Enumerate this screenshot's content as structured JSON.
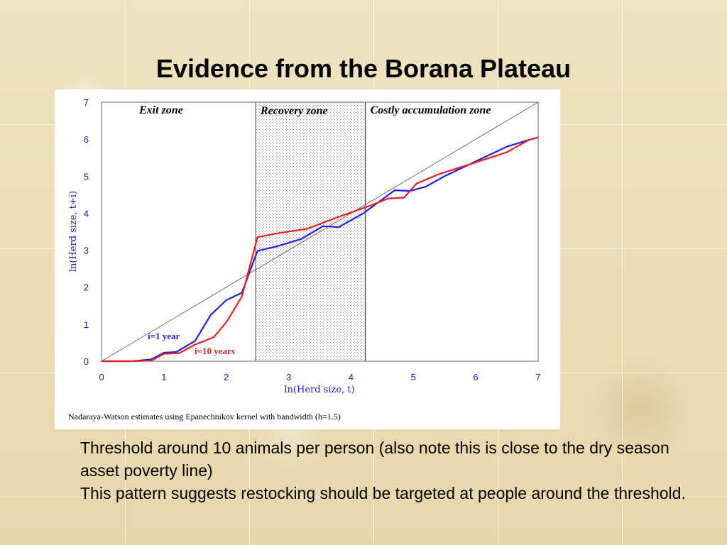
{
  "slide": {
    "title": "Evidence from the Borana Plateau",
    "paragraphs": [
      "Threshold around 10 animals per person (also note this is close to the dry season asset poverty line)",
      "This pattern suggests restocking should be targeted at people around the threshold."
    ]
  },
  "chart_data": {
    "type": "line",
    "xlabel": "ln(Herd size, t)",
    "ylabel": "ln(Herd size, t+i)",
    "xlim": [
      0,
      7
    ],
    "ylim": [
      0,
      7
    ],
    "xticks": [
      "0",
      "1",
      "2",
      "3",
      "4",
      "5",
      "6",
      "7"
    ],
    "yticks": [
      "0",
      "1",
      "2",
      "3",
      "4",
      "5",
      "6",
      "7"
    ],
    "grid": false,
    "caption": "Nadaraya-Watson estimates using Epanechnikov kernel with bandwidth (h=1.5)",
    "zones": [
      {
        "label": "Exit zone",
        "x_start": 0,
        "x_end": 2.47,
        "shaded": false
      },
      {
        "label": "Recovery zone",
        "x_start": 2.47,
        "x_end": 4.23,
        "shaded": true
      },
      {
        "label": "Costly accumulation zone",
        "x_start": 4.23,
        "x_end": 7,
        "shaded": false
      }
    ],
    "reference_line": {
      "x": [
        0,
        7
      ],
      "y": [
        0,
        7
      ]
    },
    "series": [
      {
        "name": "i=1 year",
        "color": "#1f1fe6",
        "x": [
          0,
          0.5,
          0.8,
          1.0,
          1.2,
          1.5,
          1.75,
          2.0,
          2.25,
          2.5,
          2.8,
          3.2,
          3.55,
          3.8,
          4.2,
          4.7,
          4.95,
          5.2,
          5.5,
          6.0,
          6.5,
          6.85,
          7.0
        ],
        "y": [
          0,
          0,
          0.05,
          0.23,
          0.25,
          0.55,
          1.25,
          1.65,
          1.85,
          2.98,
          3.1,
          3.3,
          3.65,
          3.62,
          4.0,
          4.62,
          4.6,
          4.72,
          5.0,
          5.4,
          5.8,
          5.98,
          6.05
        ]
      },
      {
        "name": "i=10 years",
        "color": "#e61f1f",
        "x": [
          0,
          0.5,
          0.8,
          1.0,
          1.25,
          1.5,
          1.8,
          2.0,
          2.25,
          2.5,
          2.8,
          3.3,
          3.8,
          4.3,
          4.6,
          4.85,
          5.05,
          5.4,
          5.9,
          6.5,
          6.85,
          7.0
        ],
        "y": [
          0,
          0,
          0.02,
          0.2,
          0.22,
          0.45,
          0.65,
          1.05,
          1.75,
          3.35,
          3.45,
          3.58,
          3.9,
          4.2,
          4.4,
          4.42,
          4.8,
          5.05,
          5.32,
          5.65,
          5.98,
          6.05
        ]
      }
    ]
  }
}
